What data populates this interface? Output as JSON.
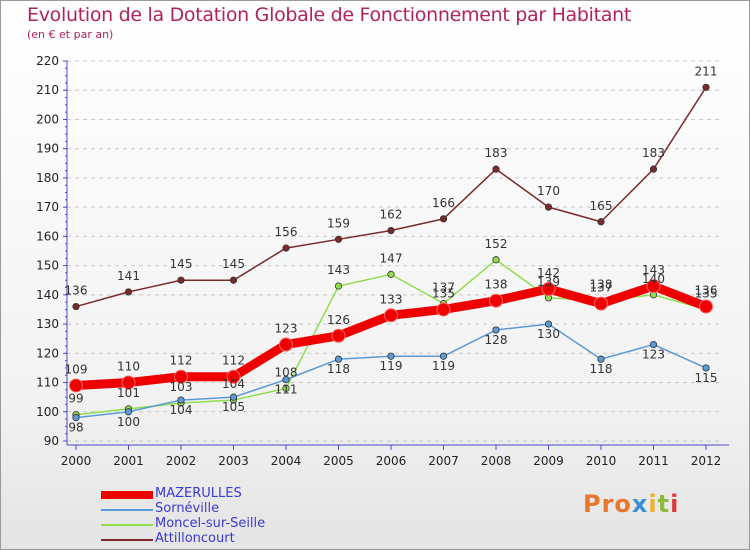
{
  "title": "Evolution de la Dotation Globale de Fonctionnement par Habitant",
  "subtitle": "(en € et par an)",
  "chart_data": {
    "type": "line",
    "title": "Evolution de la Dotation Globale de Fonctionnement par Habitant",
    "subtitle": "(en € et par an)",
    "xlabel": "",
    "ylabel": "",
    "x": [
      "2000",
      "2001",
      "2002",
      "2003",
      "2004",
      "2005",
      "2006",
      "2007",
      "2008",
      "2009",
      "2010",
      "2011",
      "2012"
    ],
    "ylim": [
      90,
      220
    ],
    "yticks": [
      90,
      100,
      110,
      120,
      130,
      140,
      150,
      160,
      170,
      180,
      190,
      200,
      210,
      220
    ],
    "grid": "horizontal dashed",
    "legend_position": "bottom-left",
    "series": [
      {
        "name": "MAZERULLES",
        "color": "#ee0000",
        "values": [
          109,
          110,
          112,
          112,
          123,
          126,
          133,
          135,
          138,
          142,
          137,
          143,
          136
        ]
      },
      {
        "name": "Sornéville",
        "color": "#5b9bd5",
        "values": [
          98,
          100,
          104,
          105,
          111,
          118,
          119,
          119,
          128,
          130,
          118,
          123,
          115
        ]
      },
      {
        "name": "Moncel-sur-Seille",
        "color": "#8ede4e",
        "values": [
          99,
          101,
          103,
          104,
          108,
          143,
          147,
          137,
          152,
          139,
          138,
          140,
          135
        ]
      },
      {
        "name": "Attilloncourt",
        "color": "#7a2a2a",
        "values": [
          136,
          141,
          145,
          145,
          156,
          159,
          162,
          166,
          183,
          170,
          165,
          183,
          211
        ]
      }
    ]
  },
  "logo": {
    "p1": "Pro",
    "p2": "x",
    "p3": "i",
    "p4": "t",
    "p5": "i"
  }
}
